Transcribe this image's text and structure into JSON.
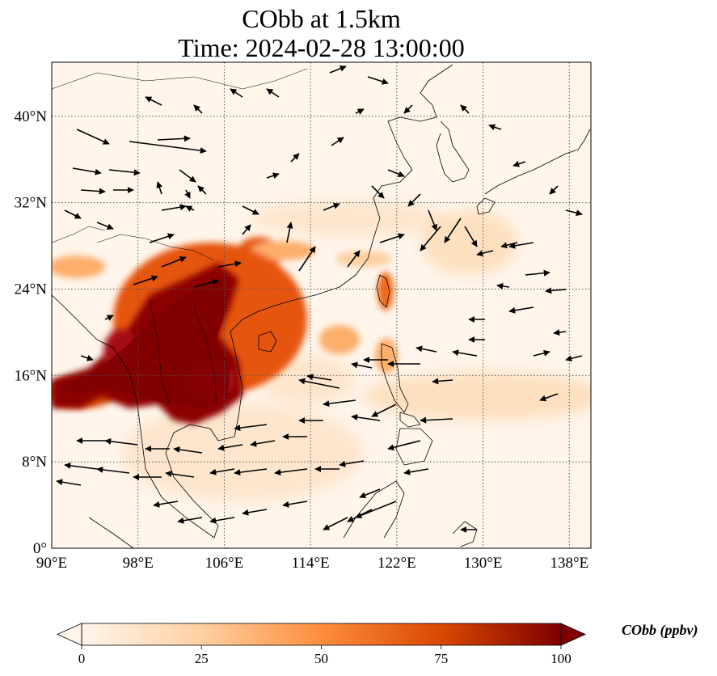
{
  "title": {
    "line1": "CObb at 1.5km",
    "line2": "Time: 2024-02-28 13:00:00"
  },
  "map": {
    "lon_range": [
      90,
      140
    ],
    "lat_range": [
      0,
      45
    ],
    "lon_ticks": [
      {
        "value": 90,
        "label": "90°E"
      },
      {
        "value": 98,
        "label": "98°E"
      },
      {
        "value": 106,
        "label": "106°E"
      },
      {
        "value": 114,
        "label": "114°E"
      },
      {
        "value": 122,
        "label": "122°E"
      },
      {
        "value": 130,
        "label": "130°E"
      },
      {
        "value": 138,
        "label": "138°E"
      }
    ],
    "lat_ticks": [
      {
        "value": 0,
        "label": "0°"
      },
      {
        "value": 8,
        "label": "8°N"
      },
      {
        "value": 16,
        "label": "16°N"
      },
      {
        "value": 24,
        "label": "24°N"
      },
      {
        "value": 32,
        "label": "32°N"
      },
      {
        "value": 40,
        "label": "40°N"
      }
    ],
    "gridlines": "dotted",
    "colormap": [
      "#fff5eb",
      "#fdd0a2",
      "#fd8d3c",
      "#d94801",
      "#7f0000"
    ],
    "coast_color": "#000000",
    "arrow_color": "#000000"
  },
  "colorbar": {
    "min": 0,
    "max": 100,
    "ticks": [
      {
        "value": 0,
        "label": "0"
      },
      {
        "value": 25,
        "label": "25"
      },
      {
        "value": 50,
        "label": "50"
      },
      {
        "value": 75,
        "label": "75"
      },
      {
        "value": 100,
        "label": "100"
      }
    ],
    "units": "CObb (ppbv)",
    "extend": "both"
  }
}
